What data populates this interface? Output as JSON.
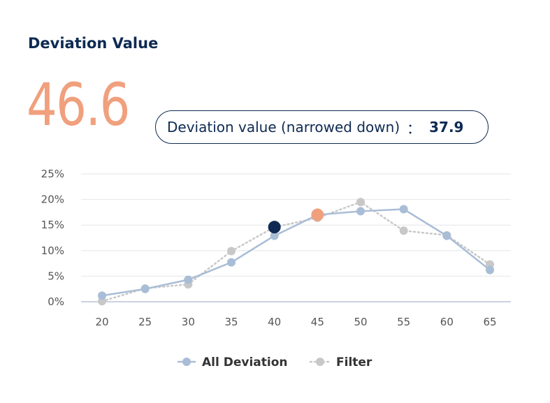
{
  "header": {
    "title": "Deviation Value",
    "value": "46.6",
    "narrowed_label": "Deviation value (narrowed down)",
    "separator": "：",
    "narrowed_value": "37.9"
  },
  "colors": {
    "accent_orange": "#f0a07d",
    "navy": "#0e2a52",
    "all_series": "#a9bdd6",
    "filter_series": "#c8c8c8"
  },
  "chart_data": {
    "type": "line",
    "x": [
      20,
      25,
      30,
      35,
      40,
      45,
      50,
      55,
      60,
      65
    ],
    "x_tick_labels": [
      "20",
      "25",
      "30",
      "35",
      "40",
      "45",
      "50",
      "55",
      "60",
      "65"
    ],
    "y_tick_labels": [
      "0%",
      "5%",
      "10%",
      "15%",
      "20%",
      "25%"
    ],
    "y_ticks": [
      0,
      5,
      10,
      15,
      20,
      25
    ],
    "ylim": [
      0,
      25
    ],
    "grid": true,
    "legend_position": "bottom",
    "series": [
      {
        "name": "All Deviation",
        "style": "solid",
        "color": "#a9bdd6",
        "values": [
          1.2,
          2.5,
          4.3,
          7.7,
          12.9,
          17.0,
          17.7,
          18.1,
          12.9,
          6.2
        ]
      },
      {
        "name": "Filter",
        "style": "dotted",
        "color": "#c8c8c8",
        "values": [
          0.1,
          2.6,
          3.4,
          9.9,
          14.6,
          16.4,
          19.5,
          13.9,
          13.0,
          7.3
        ]
      }
    ],
    "highlights": [
      {
        "x": 40,
        "y": 14.6,
        "color": "#0e2a52"
      },
      {
        "x": 45,
        "y": 17.0,
        "color": "#f0a07d"
      }
    ]
  }
}
